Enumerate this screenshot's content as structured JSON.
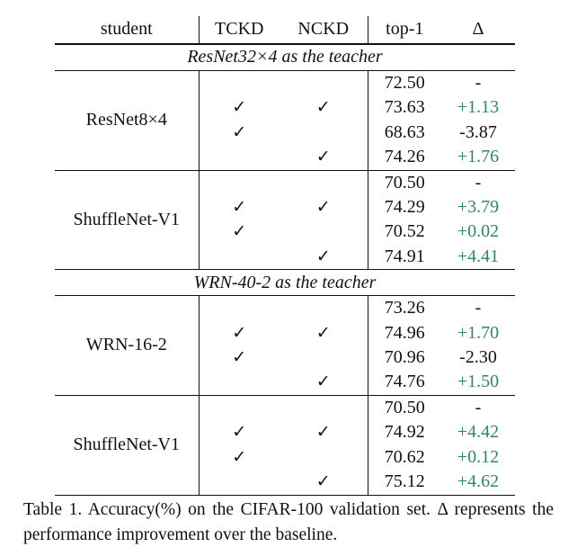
{
  "header": {
    "student": "student",
    "tckd": "TCKD",
    "nckd": "NCKD",
    "top1": "top-1",
    "delta": "Δ"
  },
  "groups": [
    {
      "teacher": "ResNet32×4 as the teacher",
      "students": [
        {
          "name": "ResNet8×4",
          "rows": [
            {
              "tckd": "",
              "nckd": "",
              "top1": "72.50",
              "delta": "-"
            },
            {
              "tckd": "✓",
              "nckd": "✓",
              "top1": "73.63",
              "delta": "+1.13"
            },
            {
              "tckd": "✓",
              "nckd": "",
              "top1": "68.63",
              "delta": "-3.87"
            },
            {
              "tckd": "",
              "nckd": "✓",
              "top1": "74.26",
              "delta": "+1.76"
            }
          ]
        },
        {
          "name": "ShuffleNet-V1",
          "rows": [
            {
              "tckd": "",
              "nckd": "",
              "top1": "70.50",
              "delta": "-"
            },
            {
              "tckd": "✓",
              "nckd": "✓",
              "top1": "74.29",
              "delta": "+3.79"
            },
            {
              "tckd": "✓",
              "nckd": "",
              "top1": "70.52",
              "delta": "+0.02"
            },
            {
              "tckd": "",
              "nckd": "✓",
              "top1": "74.91",
              "delta": "+4.41"
            }
          ]
        }
      ]
    },
    {
      "teacher": "WRN-40-2 as the teacher",
      "students": [
        {
          "name": "WRN-16-2",
          "rows": [
            {
              "tckd": "",
              "nckd": "",
              "top1": "73.26",
              "delta": "-"
            },
            {
              "tckd": "✓",
              "nckd": "✓",
              "top1": "74.96",
              "delta": "+1.70"
            },
            {
              "tckd": "✓",
              "nckd": "",
              "top1": "70.96",
              "delta": "-2.30"
            },
            {
              "tckd": "",
              "nckd": "✓",
              "top1": "74.76",
              "delta": "+1.50"
            }
          ]
        },
        {
          "name": "ShuffleNet-V1",
          "rows": [
            {
              "tckd": "",
              "nckd": "",
              "top1": "70.50",
              "delta": "-"
            },
            {
              "tckd": "✓",
              "nckd": "✓",
              "top1": "74.92",
              "delta": "+4.42"
            },
            {
              "tckd": "✓",
              "nckd": "",
              "top1": "70.62",
              "delta": "+0.12"
            },
            {
              "tckd": "",
              "nckd": "✓",
              "top1": "75.12",
              "delta": "+4.62"
            }
          ]
        }
      ]
    }
  ],
  "colors": {
    "improvement": "#2e8b57",
    "text": "#111111"
  },
  "caption": {
    "label": "Table 1.",
    "text": "Accuracy(%) on the CIFAR-100 validation set. Δ represents the performance improvement over the baseline."
  }
}
